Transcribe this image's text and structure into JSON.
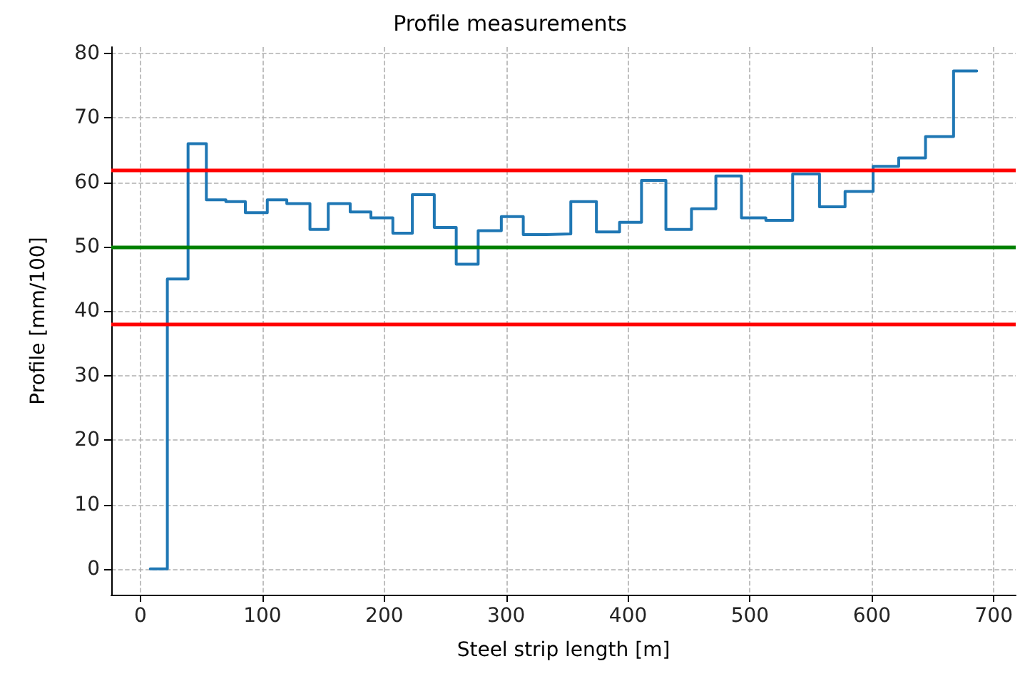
{
  "chart_data": {
    "type": "step",
    "title": "Profile measurements",
    "xlabel": "Steel strip length [m]",
    "ylabel": "Profile [mm/100]",
    "x": [
      8,
      22,
      39,
      54,
      70,
      86,
      104,
      120,
      139,
      154,
      172,
      189,
      207,
      223,
      241,
      259,
      277,
      296,
      314,
      333,
      353,
      374,
      393,
      411,
      431,
      452,
      472,
      493,
      513,
      535,
      557,
      578,
      601,
      622,
      644,
      667,
      686
    ],
    "series": [
      {
        "color": "#1f77b4",
        "values": [
          0,
          45,
          66,
          57.3,
          57,
          55.3,
          57.3,
          56.7,
          52.7,
          56.7,
          55.4,
          54.5,
          52.1,
          58.1,
          53,
          47.3,
          52.5,
          54.7,
          51.9,
          52,
          57,
          52.3,
          53.8,
          60.3,
          52.7,
          55.9,
          61,
          54.5,
          54.1,
          61.3,
          56.2,
          58.6,
          62.5,
          63.8,
          67.1,
          77.3,
          77.3
        ]
      }
    ],
    "xlim": [
      -24,
      718
    ],
    "xticks": [
      0,
      100,
      200,
      300,
      400,
      500,
      600,
      700
    ],
    "ylim": [
      -4,
      81
    ],
    "yticks": [
      0,
      10,
      20,
      30,
      40,
      50,
      60,
      70,
      80
    ],
    "ref_lines": [
      {
        "axis": "y",
        "value": 62,
        "color": "#ff0000"
      },
      {
        "axis": "y",
        "value": 50,
        "color": "#008000"
      },
      {
        "axis": "y",
        "value": 38,
        "color": "#ff0000"
      }
    ],
    "grid": true,
    "marker": "none",
    "line_style": "solid"
  }
}
